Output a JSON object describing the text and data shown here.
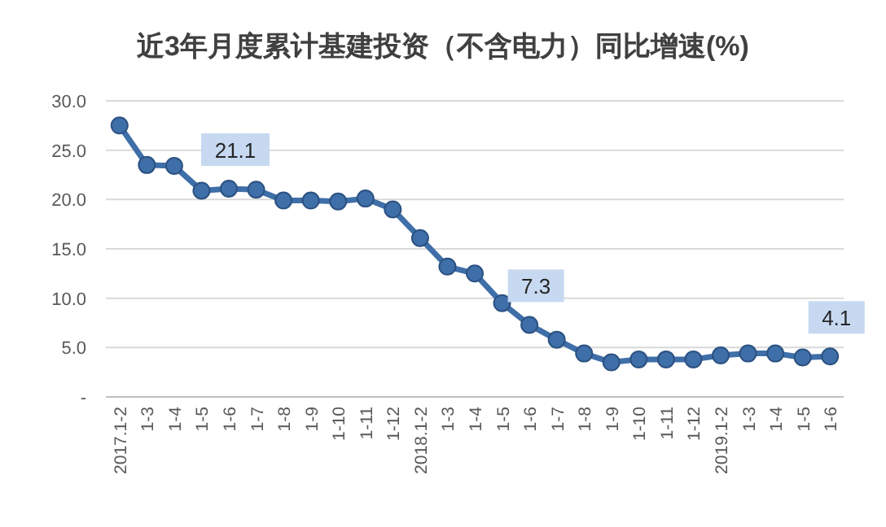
{
  "chart_data": {
    "type": "line",
    "title": "近3年月度累计基建投资（不含电力）同比增速(%)",
    "categories": [
      "2017.1-2",
      "1-3",
      "1-4",
      "1-5",
      "1-6",
      "1-7",
      "1-8",
      "1-9",
      "1-10",
      "1-11",
      "1-12",
      "2018.1-2",
      "1-3",
      "1-4",
      "1-5",
      "1-6",
      "1-7",
      "1-8",
      "1-9",
      "1-10",
      "1-11",
      "1-12",
      "2019.1-2",
      "1-3",
      "1-4",
      "1-5",
      "1-6"
    ],
    "series": [
      {
        "color": "#3f6fa8",
        "values": [
          27.5,
          23.5,
          23.4,
          20.9,
          21.1,
          21.0,
          19.9,
          19.9,
          19.8,
          20.1,
          19.0,
          16.1,
          13.2,
          12.5,
          9.5,
          7.3,
          5.8,
          4.4,
          3.5,
          3.8,
          3.8,
          3.8,
          4.2,
          4.4,
          4.4,
          4.0,
          4.1
        ],
        "value_labels": [
          null,
          null,
          null,
          null,
          "21.1",
          null,
          null,
          null,
          null,
          null,
          null,
          null,
          null,
          null,
          null,
          "7.3",
          null,
          null,
          null,
          null,
          null,
          null,
          null,
          null,
          null,
          null,
          "4.1"
        ]
      }
    ],
    "ylim": [
      0,
      30
    ],
    "yticks": [
      {
        "value": 0,
        "label": "-"
      },
      {
        "value": 5,
        "label": "5.0"
      },
      {
        "value": 10,
        "label": "10.0"
      },
      {
        "value": 15,
        "label": "15.0"
      },
      {
        "value": 20,
        "label": "20.0"
      },
      {
        "value": 25,
        "label": "25.0"
      },
      {
        "value": 30,
        "label": "30.0"
      }
    ],
    "grid": "y",
    "marker": "circle",
    "line_style": "solid"
  }
}
